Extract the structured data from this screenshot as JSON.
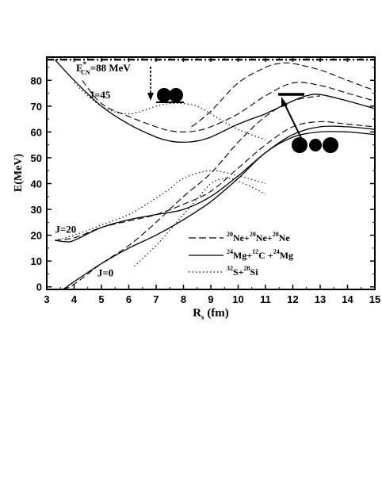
{
  "chart_data": {
    "type": "line",
    "xlabel_main": "R",
    "xlabel_sub": "s",
    "xlabel_rest": " (fm)",
    "ylabel": "E(MeV)",
    "xlim": [
      3,
      15
    ],
    "ylim": [
      -1,
      89
    ],
    "xticks": [
      3,
      4,
      5,
      6,
      7,
      8,
      9,
      10,
      11,
      12,
      13,
      14,
      15
    ],
    "yticks": [
      0,
      10,
      20,
      30,
      40,
      50,
      60,
      70,
      80
    ],
    "ecn_label": {
      "main": "E",
      "star": "*",
      "sub": "CN",
      "rest": "=88 MeV"
    },
    "ecn_value": 88,
    "annotations": [
      {
        "text": "J=45",
        "x": 4.55,
        "y": 73
      },
      {
        "text": "J=20",
        "x": 3.3,
        "y": 21
      },
      {
        "text": "J=0",
        "x": 4.85,
        "y": 4
      }
    ],
    "legend": [
      {
        "style": "dashed",
        "parts": [
          {
            "sup": "20",
            "t": "Ne+"
          },
          {
            "sup": "20",
            "t": "Ne+"
          },
          {
            "sup": "20",
            "t": "Ne"
          }
        ]
      },
      {
        "style": "solid",
        "parts": [
          {
            "sup": "24",
            "t": "Mg+"
          },
          {
            "sup": "12",
            "t": "C +"
          },
          {
            "sup": "24",
            "t": "Mg"
          }
        ]
      },
      {
        "style": "dotted",
        "parts": [
          {
            "sup": "32",
            "t": "S+"
          },
          {
            "sup": "28",
            "t": "Si"
          }
        ]
      }
    ],
    "series": [
      {
        "style": "solid",
        "x": [
          3.3,
          4,
          5,
          6,
          7,
          7.5,
          8,
          8.5,
          9,
          10,
          11
        ],
        "y": [
          88,
          80,
          70,
          63,
          58,
          56.5,
          56,
          56.5,
          58,
          63,
          67
        ]
      },
      {
        "style": "solid",
        "x": [
          11,
          12,
          12.5,
          13,
          14,
          15
        ],
        "y": [
          67,
          72,
          74,
          74.5,
          72,
          69
        ]
      },
      {
        "style": "dashed",
        "x": [
          4.3,
          5,
          6,
          7,
          7.5,
          8,
          8.5,
          9,
          10,
          11,
          12,
          13,
          14,
          15
        ],
        "y": [
          80,
          71,
          66,
          62,
          60.5,
          60,
          60.5,
          62,
          67,
          74,
          79,
          78,
          75,
          72
        ]
      },
      {
        "style": "dashed",
        "x": [
          8.3,
          9,
          10,
          11,
          11.5,
          12,
          13,
          14,
          15
        ],
        "y": [
          62,
          68,
          79,
          85,
          86.5,
          86.5,
          84,
          80,
          76
        ]
      },
      {
        "style": "dotted",
        "x": [
          4,
          5,
          6,
          7,
          7.5,
          8,
          8.5,
          9,
          10,
          11
        ],
        "y": [
          79,
          70,
          67,
          70,
          71,
          71,
          70,
          67,
          61,
          57
        ]
      },
      {
        "style": "solid",
        "x": [
          3.3,
          3.7,
          4,
          5,
          6,
          7,
          8,
          9,
          10,
          11,
          12,
          13,
          14,
          15
        ],
        "y": [
          18,
          17.5,
          18,
          23,
          26,
          28,
          30,
          35,
          43,
          52,
          59,
          62,
          62,
          61
        ]
      },
      {
        "style": "dashed",
        "x": [
          3.3,
          4,
          5,
          6,
          7,
          8,
          9,
          10,
          11,
          12,
          13,
          14,
          15
        ],
        "y": [
          18,
          19,
          23,
          25.5,
          28,
          32,
          37,
          46,
          55,
          62,
          64,
          63,
          62
        ]
      },
      {
        "style": "dotted",
        "x": [
          3.3,
          4,
          5,
          6,
          6.8,
          7.5,
          8,
          9,
          10,
          11
        ],
        "y": [
          18,
          20,
          24,
          28,
          33,
          38,
          42,
          45,
          43,
          40
        ]
      },
      {
        "style": "solid",
        "x": [
          3.6,
          4,
          5,
          6,
          7,
          8,
          9,
          10,
          11,
          12,
          13,
          14,
          15
        ],
        "y": [
          -1,
          2,
          9,
          15,
          20,
          26,
          33,
          42,
          52,
          58,
          60,
          60,
          59
        ]
      },
      {
        "style": "dashed",
        "x": [
          3.6,
          4,
          5,
          6,
          7,
          8,
          9,
          10,
          11,
          12,
          13
        ],
        "y": [
          -1,
          1,
          9,
          16,
          25,
          35,
          44,
          56,
          66,
          72,
          74
        ]
      },
      {
        "style": "dotted",
        "x": [
          6.2,
          7,
          7.5,
          8,
          8.5,
          9,
          9.5,
          10,
          11
        ],
        "y": [
          8,
          16,
          22,
          28,
          34,
          40,
          42,
          41,
          36
        ]
      }
    ]
  }
}
